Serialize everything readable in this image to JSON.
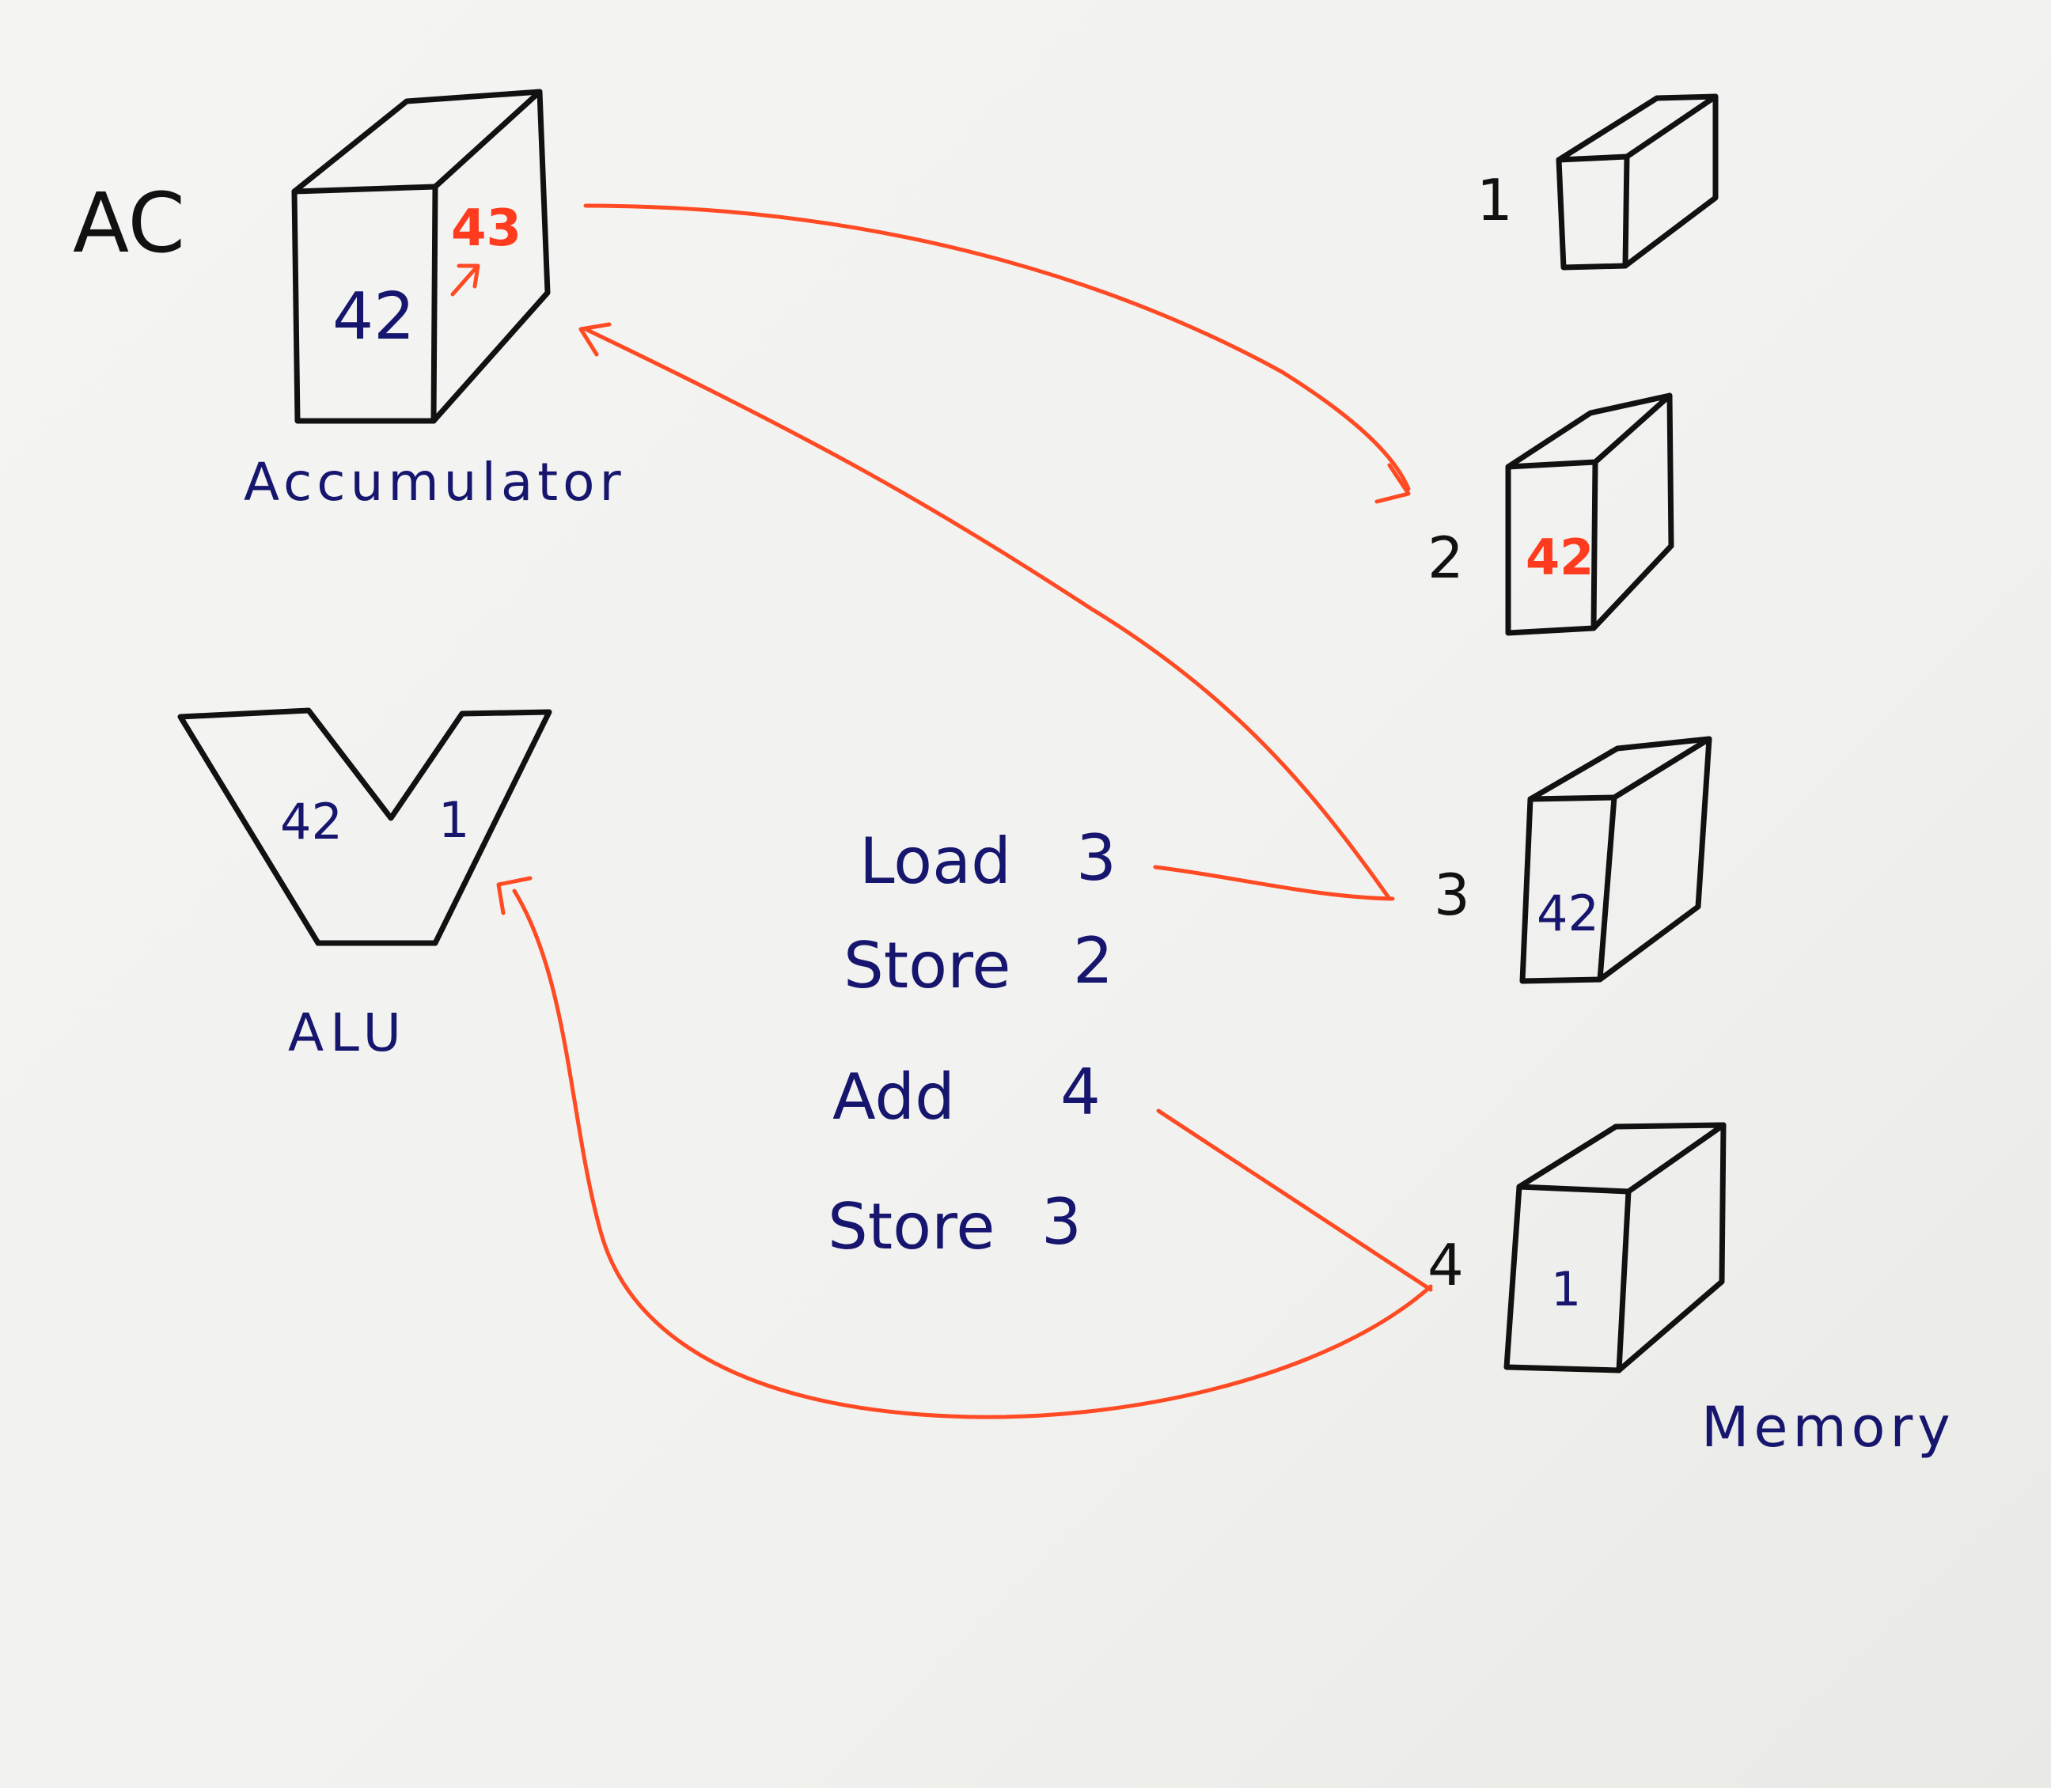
{
  "accumulator": {
    "side_label": "AC",
    "name": "Accumulator",
    "value": "42",
    "new_value": "43"
  },
  "alu": {
    "name": "ALU",
    "left_input": "42",
    "right_input": "1"
  },
  "memory": {
    "name": "Memory",
    "cells": [
      {
        "address": "1",
        "value": ""
      },
      {
        "address": "2",
        "value": "42"
      },
      {
        "address": "3",
        "value": "42"
      },
      {
        "address": "4",
        "value": "1"
      }
    ]
  },
  "program": [
    {
      "op": "Load",
      "arg": "3"
    },
    {
      "op": "Store",
      "arg": "2"
    },
    {
      "op": "Add",
      "arg": "4"
    },
    {
      "op": "Store",
      "arg": "3"
    }
  ],
  "colors": {
    "ink": "#111111",
    "handwriting_blue": "#17166e",
    "arrow_red": "#ff4a23"
  }
}
